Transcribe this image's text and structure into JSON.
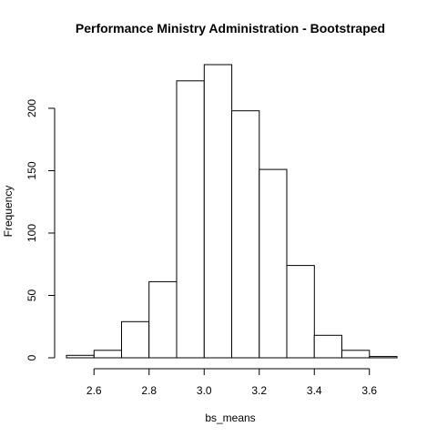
{
  "chart_data": {
    "type": "bar",
    "title": "Performance Ministry Administration - Bootstraped",
    "xlabel": "bs_means",
    "ylabel": "Frequency",
    "bin_edges": [
      2.5,
      2.6,
      2.7,
      2.8,
      2.9,
      3.0,
      3.1,
      3.2,
      3.3,
      3.4,
      3.5,
      3.6,
      3.7
    ],
    "values": [
      2,
      6,
      29,
      61,
      222,
      235,
      198,
      151,
      74,
      18,
      6,
      1
    ],
    "xlim": [
      2.5,
      3.7
    ],
    "ylim": [
      0,
      235
    ],
    "x_ticks": [
      2.6,
      2.8,
      3.0,
      3.2,
      3.4,
      3.6
    ],
    "x_tick_labels": [
      "2.6",
      "2.8",
      "3.0",
      "3.2",
      "3.4",
      "3.6"
    ],
    "y_ticks": [
      0,
      50,
      100,
      150,
      200
    ],
    "y_tick_labels": [
      "0",
      "50",
      "100",
      "150",
      "200"
    ],
    "grid": false,
    "legend": "none"
  }
}
